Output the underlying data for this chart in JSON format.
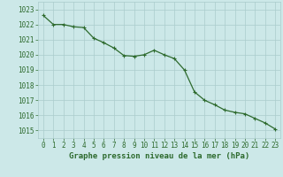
{
  "x": [
    0,
    1,
    2,
    3,
    4,
    5,
    6,
    7,
    8,
    9,
    10,
    11,
    12,
    13,
    14,
    15,
    16,
    17,
    18,
    19,
    20,
    21,
    22,
    23
  ],
  "y": [
    1022.6,
    1022.0,
    1022.0,
    1021.85,
    1021.8,
    1021.1,
    1020.8,
    1020.45,
    1019.95,
    1019.9,
    1020.0,
    1020.3,
    1020.0,
    1019.75,
    1019.0,
    1017.55,
    1017.0,
    1016.7,
    1016.35,
    1016.2,
    1016.1,
    1015.8,
    1015.5,
    1015.1
  ],
  "line_color": "#2d6a2d",
  "marker": "+",
  "marker_size": 3,
  "marker_color": "#2d6a2d",
  "bg_color": "#cce8e8",
  "grid_color": "#aacccc",
  "tick_color": "#2d6a2d",
  "label_color": "#2d6a2d",
  "xlabel": "Graphe pression niveau de la mer (hPa)",
  "xlabel_fontsize": 6.5,
  "ylim": [
    1014.5,
    1023.5
  ],
  "yticks": [
    1015,
    1016,
    1017,
    1018,
    1019,
    1020,
    1021,
    1022,
    1023
  ],
  "xticks": [
    0,
    1,
    2,
    3,
    4,
    5,
    6,
    7,
    8,
    9,
    10,
    11,
    12,
    13,
    14,
    15,
    16,
    17,
    18,
    19,
    20,
    21,
    22,
    23
  ],
  "tick_fontsize": 5.5,
  "line_width": 0.9
}
